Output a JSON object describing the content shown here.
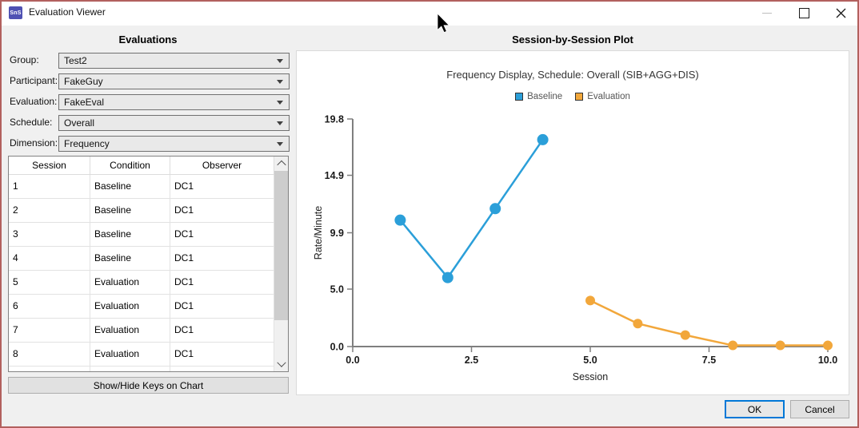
{
  "window": {
    "title": "Evaluation Viewer",
    "icon_text": "SnS"
  },
  "left_panel": {
    "header": "Evaluations",
    "fields": [
      {
        "label": "Group:",
        "value": "Test2"
      },
      {
        "label": "Participant:",
        "value": "FakeGuy"
      },
      {
        "label": "Evaluation:",
        "value": "FakeEval"
      },
      {
        "label": "Schedule:",
        "value": "Overall"
      },
      {
        "label": "Dimension:",
        "value": "Frequency"
      }
    ],
    "table": {
      "columns": [
        "Session",
        "Condition",
        "Observer"
      ],
      "rows": [
        [
          "1",
          "Baseline",
          "DC1"
        ],
        [
          "2",
          "Baseline",
          "DC1"
        ],
        [
          "3",
          "Baseline",
          "DC1"
        ],
        [
          "4",
          "Baseline",
          "DC1"
        ],
        [
          "5",
          "Evaluation",
          "DC1"
        ],
        [
          "6",
          "Evaluation",
          "DC1"
        ],
        [
          "7",
          "Evaluation",
          "DC1"
        ],
        [
          "8",
          "Evaluation",
          "DC1"
        ]
      ]
    },
    "keys_button": "Show/Hide Keys on Chart"
  },
  "right_panel": {
    "header": "Session-by-Session Plot"
  },
  "chart_data": {
    "type": "line",
    "title": "Frequency Display, Schedule: Overall (SIB+AGG+DIS)",
    "xlabel": "Session",
    "ylabel": "Rate/Minute",
    "xlim": [
      0.0,
      10.0
    ],
    "ylim": [
      0.0,
      19.8
    ],
    "x_ticks": [
      "0.0",
      "2.5",
      "5.0",
      "7.5",
      "10.0"
    ],
    "y_ticks": [
      "0.0",
      "5.0",
      "9.9",
      "14.9",
      "19.8"
    ],
    "grid": false,
    "legend_position": "top-center",
    "series": [
      {
        "name": "Baseline",
        "color": "#2b9fd9",
        "x": [
          1,
          2,
          3,
          4
        ],
        "y": [
          11.0,
          6.0,
          12.0,
          18.0
        ]
      },
      {
        "name": "Evaluation",
        "color": "#f2a73b",
        "x": [
          5,
          6,
          7,
          8,
          9,
          10
        ],
        "y": [
          4.0,
          2.0,
          1.0,
          0.1,
          0.1,
          0.1
        ]
      }
    ]
  },
  "footer": {
    "ok": "OK",
    "cancel": "Cancel"
  },
  "colors": {
    "frame_border": "#b2605e",
    "background": "#f0f0f0",
    "axis": "#7f7f7f",
    "baseline_series": "#2b9fd9",
    "evaluation_series": "#f2a73b",
    "ok_focus_border": "#0078d7"
  }
}
